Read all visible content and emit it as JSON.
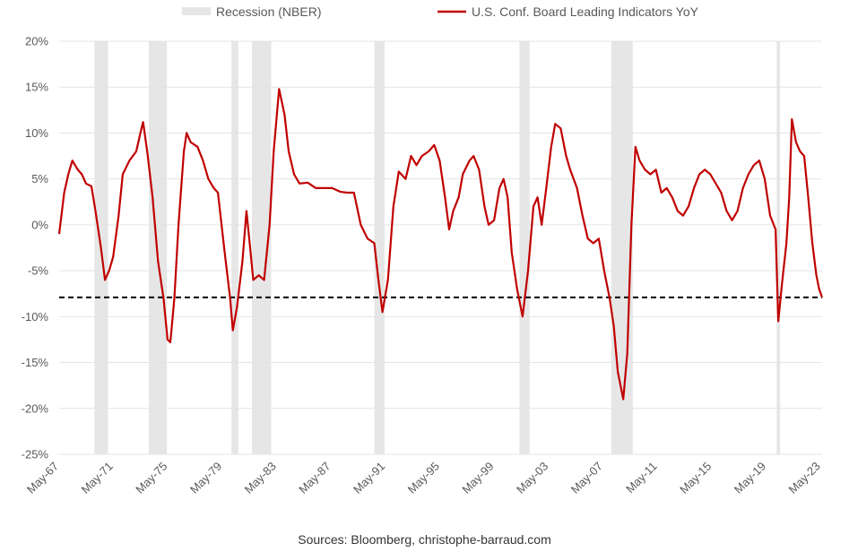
{
  "chart_data": {
    "type": "line",
    "title": "",
    "xlabel": "",
    "ylabel": "",
    "x_range": [
      1967.33,
      2023.42
    ],
    "ylim": [
      -25,
      20
    ],
    "y_ticks": [
      20,
      15,
      10,
      5,
      0,
      -5,
      -10,
      -15,
      -20,
      -25
    ],
    "y_tick_labels": [
      "20%",
      "15%",
      "10%",
      "5%",
      "0%",
      "-5%",
      "-10%",
      "-15%",
      "-20%",
      "-25%"
    ],
    "x_ticks": [
      1967.33,
      1971.33,
      1975.33,
      1979.33,
      1983.33,
      1987.33,
      1991.33,
      1995.33,
      1999.33,
      2003.33,
      2007.33,
      2011.33,
      2015.33,
      2019.33,
      2023.33
    ],
    "x_tick_labels": [
      "May-67",
      "May-71",
      "May-75",
      "May-79",
      "May-83",
      "May-87",
      "May-91",
      "May-95",
      "May-99",
      "May-03",
      "May-07",
      "May-11",
      "May-15",
      "May-19",
      "May-23"
    ],
    "grid": true,
    "legend": {
      "position": "top",
      "entries": [
        {
          "label": "Recession (NBER)",
          "kind": "band",
          "color": "#e6e6e6"
        },
        {
          "label": "U.S. Conf. Board Leading Indicators YoY",
          "kind": "line",
          "color": "#c00000"
        }
      ]
    },
    "recessions": [
      {
        "start": 1969.92,
        "end": 1970.92
      },
      {
        "start": 1973.92,
        "end": 1975.25
      },
      {
        "start": 1980.0,
        "end": 1980.5
      },
      {
        "start": 1981.5,
        "end": 1982.92
      },
      {
        "start": 1990.5,
        "end": 1991.25
      },
      {
        "start": 2001.17,
        "end": 2001.92
      },
      {
        "start": 2007.92,
        "end": 2009.5
      },
      {
        "start": 2020.08,
        "end": 2020.33
      }
    ],
    "reference_line": {
      "y": -7.9,
      "style": "dashed",
      "color": "#000000"
    },
    "series": [
      {
        "name": "U.S. Conf. Board Leading Indicators YoY",
        "color": "#c00000",
        "points": [
          [
            1967.33,
            -1.0
          ],
          [
            1967.7,
            3.5
          ],
          [
            1968.0,
            5.5
          ],
          [
            1968.3,
            7.0
          ],
          [
            1968.7,
            6.0
          ],
          [
            1969.0,
            5.5
          ],
          [
            1969.3,
            4.5
          ],
          [
            1969.7,
            4.2
          ],
          [
            1970.0,
            1.5
          ],
          [
            1970.4,
            -2.5
          ],
          [
            1970.7,
            -6.0
          ],
          [
            1971.0,
            -5.0
          ],
          [
            1971.3,
            -3.5
          ],
          [
            1971.7,
            1.0
          ],
          [
            1972.0,
            5.5
          ],
          [
            1972.5,
            7.0
          ],
          [
            1973.0,
            8.0
          ],
          [
            1973.3,
            10.0
          ],
          [
            1973.5,
            11.2
          ],
          [
            1973.8,
            8.0
          ],
          [
            1974.2,
            3.0
          ],
          [
            1974.6,
            -4.0
          ],
          [
            1975.0,
            -8.0
          ],
          [
            1975.3,
            -12.5
          ],
          [
            1975.5,
            -12.8
          ],
          [
            1975.8,
            -8.0
          ],
          [
            1976.1,
            0.0
          ],
          [
            1976.5,
            8.0
          ],
          [
            1976.7,
            10.0
          ],
          [
            1977.0,
            9.0
          ],
          [
            1977.5,
            8.5
          ],
          [
            1977.9,
            7.0
          ],
          [
            1978.3,
            5.0
          ],
          [
            1978.7,
            4.0
          ],
          [
            1979.0,
            3.5
          ],
          [
            1979.5,
            -3.0
          ],
          [
            1979.9,
            -8.0
          ],
          [
            1980.1,
            -11.5
          ],
          [
            1980.4,
            -9.0
          ],
          [
            1980.8,
            -4.0
          ],
          [
            1981.1,
            1.5
          ],
          [
            1981.3,
            -1.5
          ],
          [
            1981.6,
            -6.0
          ],
          [
            1982.0,
            -5.5
          ],
          [
            1982.4,
            -6.0
          ],
          [
            1982.8,
            0.0
          ],
          [
            1983.1,
            8.0
          ],
          [
            1983.5,
            14.8
          ],
          [
            1983.9,
            12.0
          ],
          [
            1984.2,
            8.0
          ],
          [
            1984.6,
            5.5
          ],
          [
            1985.0,
            4.5
          ],
          [
            1985.6,
            4.6
          ],
          [
            1986.2,
            4.0
          ],
          [
            1986.8,
            4.0
          ],
          [
            1987.4,
            4.0
          ],
          [
            1988.0,
            3.6
          ],
          [
            1988.5,
            3.5
          ],
          [
            1989.0,
            3.5
          ],
          [
            1989.5,
            0.0
          ],
          [
            1990.0,
            -1.5
          ],
          [
            1990.5,
            -2.0
          ],
          [
            1990.8,
            -6.0
          ],
          [
            1991.1,
            -9.5
          ],
          [
            1991.5,
            -6.0
          ],
          [
            1991.9,
            2.0
          ],
          [
            1992.3,
            5.8
          ],
          [
            1992.8,
            5.0
          ],
          [
            1993.2,
            7.5
          ],
          [
            1993.6,
            6.5
          ],
          [
            1994.0,
            7.5
          ],
          [
            1994.5,
            8.0
          ],
          [
            1994.9,
            8.7
          ],
          [
            1995.3,
            7.0
          ],
          [
            1995.7,
            3.0
          ],
          [
            1996.0,
            -0.5
          ],
          [
            1996.3,
            1.5
          ],
          [
            1996.7,
            3.0
          ],
          [
            1997.0,
            5.5
          ],
          [
            1997.5,
            7.0
          ],
          [
            1997.8,
            7.5
          ],
          [
            1998.2,
            6.0
          ],
          [
            1998.6,
            2.0
          ],
          [
            1998.9,
            0.0
          ],
          [
            1999.3,
            0.5
          ],
          [
            1999.7,
            4.0
          ],
          [
            2000.0,
            5.0
          ],
          [
            2000.3,
            3.0
          ],
          [
            2000.6,
            -3.0
          ],
          [
            2001.0,
            -7.0
          ],
          [
            2001.4,
            -10.0
          ],
          [
            2001.8,
            -5.0
          ],
          [
            2002.2,
            2.0
          ],
          [
            2002.5,
            3.0
          ],
          [
            2002.8,
            0.0
          ],
          [
            2003.1,
            3.5
          ],
          [
            2003.5,
            8.5
          ],
          [
            2003.8,
            11.0
          ],
          [
            2004.2,
            10.5
          ],
          [
            2004.6,
            7.5
          ],
          [
            2004.9,
            6.0
          ],
          [
            2005.4,
            4.0
          ],
          [
            2005.8,
            1.0
          ],
          [
            2006.2,
            -1.5
          ],
          [
            2006.6,
            -2.0
          ],
          [
            2007.0,
            -1.5
          ],
          [
            2007.4,
            -5.0
          ],
          [
            2007.8,
            -8.0
          ],
          [
            2008.1,
            -11.0
          ],
          [
            2008.4,
            -16.0
          ],
          [
            2008.8,
            -19.0
          ],
          [
            2009.1,
            -14.0
          ],
          [
            2009.4,
            0.0
          ],
          [
            2009.7,
            8.5
          ],
          [
            2010.0,
            7.0
          ],
          [
            2010.4,
            6.0
          ],
          [
            2010.8,
            5.5
          ],
          [
            2011.2,
            6.0
          ],
          [
            2011.6,
            3.5
          ],
          [
            2012.0,
            4.0
          ],
          [
            2012.4,
            3.0
          ],
          [
            2012.8,
            1.5
          ],
          [
            2013.2,
            1.0
          ],
          [
            2013.6,
            2.0
          ],
          [
            2014.0,
            4.0
          ],
          [
            2014.4,
            5.5
          ],
          [
            2014.8,
            6.0
          ],
          [
            2015.2,
            5.5
          ],
          [
            2015.6,
            4.5
          ],
          [
            2016.0,
            3.5
          ],
          [
            2016.4,
            1.5
          ],
          [
            2016.8,
            0.5
          ],
          [
            2017.2,
            1.5
          ],
          [
            2017.6,
            4.0
          ],
          [
            2018.0,
            5.5
          ],
          [
            2018.4,
            6.5
          ],
          [
            2018.8,
            7.0
          ],
          [
            2019.2,
            5.0
          ],
          [
            2019.6,
            1.0
          ],
          [
            2020.0,
            -0.5
          ],
          [
            2020.2,
            -10.5
          ],
          [
            2020.5,
            -6.0
          ],
          [
            2020.8,
            -2.0
          ],
          [
            2021.0,
            3.0
          ],
          [
            2021.2,
            11.5
          ],
          [
            2021.5,
            9.0
          ],
          [
            2021.8,
            8.0
          ],
          [
            2022.1,
            7.5
          ],
          [
            2022.4,
            3.0
          ],
          [
            2022.7,
            -2.0
          ],
          [
            2023.0,
            -5.5
          ],
          [
            2023.2,
            -7.0
          ],
          [
            2023.42,
            -7.9
          ]
        ]
      }
    ]
  },
  "source_text": "Sources: Bloomberg, christophe-barraud.com"
}
